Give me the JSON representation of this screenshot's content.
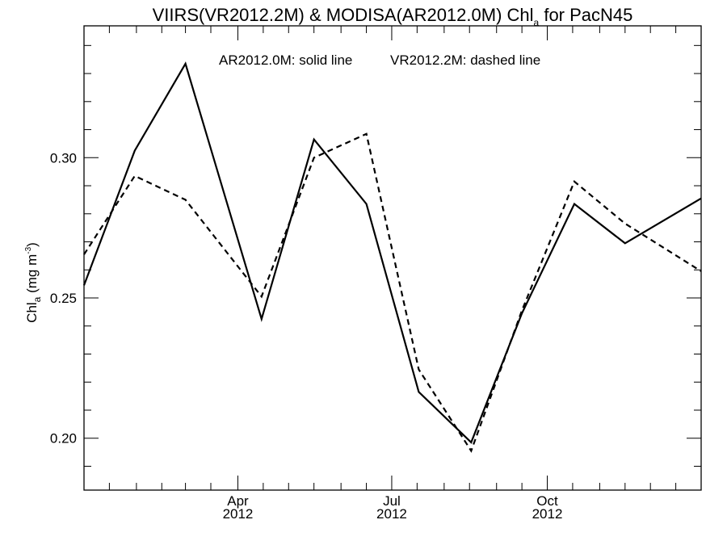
{
  "chart_data": {
    "type": "line",
    "title": {
      "prefix": "VIIRS(VR2012.2M) & MODISA(AR2012.0M)  Chl",
      "subscript": "a",
      "suffix": " for PacN45"
    },
    "annotation": {
      "solid": "AR2012.0M: solid line",
      "dashed": "VR2012.2M: dashed line"
    },
    "ylabel": {
      "prefix": "Chl",
      "subscript": "a",
      "middle": " (mg m",
      "superscript": "-3",
      "suffix": ")"
    },
    "ylim": [
      0.1815,
      0.347
    ],
    "yticks": [
      {
        "value": 0.2,
        "label": "0.20"
      },
      {
        "value": 0.25,
        "label": "0.25"
      },
      {
        "value": 0.3,
        "label": "0.30"
      }
    ],
    "y_minor_step": 0.01,
    "xlim": [
      "2012-01-01",
      "2012-12-31"
    ],
    "xticks": [
      {
        "date": "2012-04-01",
        "month": "Apr",
        "year": "2012"
      },
      {
        "date": "2012-07-01",
        "month": "Jul",
        "year": "2012"
      },
      {
        "date": "2012-10-01",
        "month": "Oct",
        "year": "2012"
      }
    ],
    "x_minor_dates": [
      "2012-01-16",
      "2012-02-01",
      "2012-02-16",
      "2012-03-01",
      "2012-03-16",
      "2012-04-16",
      "2012-05-01",
      "2012-05-16",
      "2012-06-01",
      "2012-06-16",
      "2012-07-16",
      "2012-08-01",
      "2012-08-16",
      "2012-09-01",
      "2012-09-16",
      "2012-10-16",
      "2012-11-01",
      "2012-11-16",
      "2012-12-01",
      "2012-12-16"
    ],
    "grid": false,
    "series": [
      {
        "name": "AR2012.0M",
        "style": "solid",
        "color": "#000000",
        "x": [
          "2012-01-01",
          "2012-01-31",
          "2012-03-01",
          "2012-04-15",
          "2012-05-16",
          "2012-06-16",
          "2012-07-17",
          "2012-08-17",
          "2012-09-16",
          "2012-10-17",
          "2012-11-16",
          "2012-12-31"
        ],
        "y": [
          0.2545,
          0.3025,
          0.3335,
          0.2425,
          0.3065,
          0.2835,
          0.2165,
          0.1985,
          0.2445,
          0.2835,
          0.2695,
          0.2855
        ]
      },
      {
        "name": "VR2012.2M",
        "style": "dashed",
        "color": "#000000",
        "x": [
          "2012-01-01",
          "2012-01-31",
          "2012-03-01",
          "2012-04-15",
          "2012-05-16",
          "2012-06-16",
          "2012-07-17",
          "2012-08-17",
          "2012-09-16",
          "2012-10-17",
          "2012-11-16",
          "2012-12-31"
        ],
        "y": [
          0.2655,
          0.2935,
          0.285,
          0.2505,
          0.3,
          0.3085,
          0.2245,
          0.1955,
          0.2455,
          0.2915,
          0.2765,
          0.2595
        ]
      }
    ]
  }
}
